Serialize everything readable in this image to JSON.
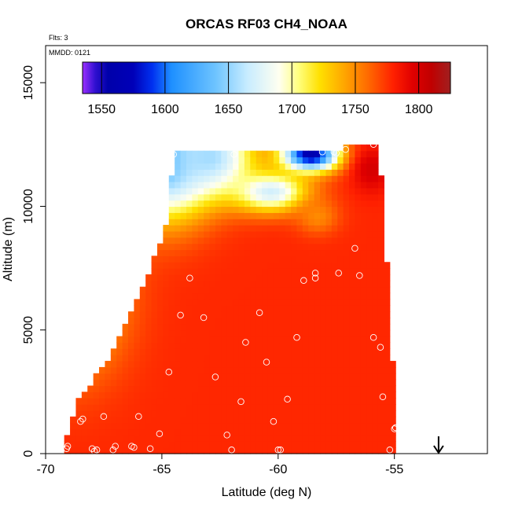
{
  "chart_data": {
    "type": "heatmap",
    "title": "ORCAS RF03 CH4_NOAA",
    "note_flights": "Flts: 3",
    "note_date": "MMDD: 0121",
    "xlabel": "Latitude (deg N)",
    "ylabel": "Altitude (m)",
    "xlim": [
      -70,
      -51
    ],
    "ylim": [
      0,
      16500
    ],
    "x_ticks": [
      -70,
      -65,
      -60,
      -55
    ],
    "x_tick_labels": [
      "-70",
      "-65",
      "-60",
      "-55"
    ],
    "y_ticks": [
      0,
      5000,
      10000,
      15000
    ],
    "y_tick_labels": [
      "0",
      "5000",
      "10000",
      "15000"
    ],
    "colorbar": {
      "range": [
        1535,
        1825
      ],
      "ticks": [
        1550,
        1600,
        1650,
        1700,
        1750,
        1800
      ],
      "tick_labels": [
        "1550",
        "1600",
        "1650",
        "1700",
        "1750",
        "1800"
      ],
      "gradient": [
        [
          1535,
          "#9b30ff"
        ],
        [
          1545,
          "#3010d0"
        ],
        [
          1555,
          "#0000aa"
        ],
        [
          1575,
          "#0000b8"
        ],
        [
          1590,
          "#0030f0"
        ],
        [
          1605,
          "#1e90ff"
        ],
        [
          1640,
          "#6ec4ff"
        ],
        [
          1665,
          "#c8ecff"
        ],
        [
          1690,
          "#fffff0"
        ],
        [
          1705,
          "#ffff80"
        ],
        [
          1722,
          "#ffe000"
        ],
        [
          1740,
          "#ffaa00"
        ],
        [
          1760,
          "#ff6a00"
        ],
        [
          1780,
          "#ff2000"
        ],
        [
          1795,
          "#e00000"
        ],
        [
          1810,
          "#c00000"
        ],
        [
          1825,
          "#a02020"
        ]
      ]
    },
    "field": {
      "lat_range": [
        -69.2,
        -54.8
      ],
      "alt_top": 12200,
      "boundary": [
        [
          -69.2,
          500
        ],
        [
          -68.6,
          2200
        ],
        [
          -67.6,
          3400
        ],
        [
          -66.5,
          5300
        ],
        [
          -65.5,
          7500
        ],
        [
          -64.7,
          9500
        ],
        [
          -64.6,
          10800
        ],
        [
          -64.5,
          12200
        ],
        [
          -57.2,
          12200
        ],
        [
          -57.2,
          12450
        ],
        [
          -55.7,
          12450
        ],
        [
          -55.4,
          9700
        ],
        [
          -55.3,
          7000
        ],
        [
          -55.1,
          4000
        ],
        [
          -54.9,
          1100
        ]
      ],
      "background_value": 1778,
      "features": [
        {
          "lat": -69.0,
          "alt": 6500,
          "value": 1705,
          "sx": 2.2,
          "sy": 3000
        },
        {
          "lat": -64.8,
          "alt": 12000,
          "value": 1620,
          "sx": 1.8,
          "sy": 2300
        },
        {
          "lat": -63.0,
          "alt": 12000,
          "value": 1655,
          "sx": 2.0,
          "sy": 1600
        },
        {
          "lat": -58.6,
          "alt": 12100,
          "value": 1560,
          "sx": 1.2,
          "sy": 650
        },
        {
          "lat": -60.3,
          "alt": 10600,
          "value": 1670,
          "sx": 1.6,
          "sy": 800
        },
        {
          "lat": -58.3,
          "alt": 9600,
          "value": 1750,
          "sx": 0.9,
          "sy": 700
        },
        {
          "lat": -56.0,
          "alt": 11500,
          "value": 1800,
          "sx": 0.8,
          "sy": 900
        }
      ]
    },
    "observations": [
      [
        -69.1,
        200
      ],
      [
        -69.05,
        300
      ],
      [
        -68.4,
        1400
      ],
      [
        -68.5,
        1300
      ],
      [
        -68.0,
        200
      ],
      [
        -67.8,
        150
      ],
      [
        -67.9,
        100
      ],
      [
        -67.5,
        1500
      ],
      [
        -67.0,
        300
      ],
      [
        -67.1,
        150
      ],
      [
        -66.3,
        300
      ],
      [
        -66.2,
        250
      ],
      [
        -66.0,
        1500
      ],
      [
        -65.1,
        800
      ],
      [
        -65.5,
        200
      ],
      [
        -64.7,
        3300
      ],
      [
        -64.2,
        5600
      ],
      [
        -63.2,
        5500
      ],
      [
        -62.7,
        3100
      ],
      [
        -62.2,
        750
      ],
      [
        -62.0,
        150
      ],
      [
        -61.6,
        2100
      ],
      [
        -61.4,
        4500
      ],
      [
        -60.8,
        5700
      ],
      [
        -60.5,
        3700
      ],
      [
        -60.2,
        1300
      ],
      [
        -60.0,
        150
      ],
      [
        -59.9,
        150
      ],
      [
        -59.6,
        2200
      ],
      [
        -59.2,
        4700
      ],
      [
        -58.9,
        7000
      ],
      [
        -58.4,
        7300
      ],
      [
        -58.4,
        7100
      ],
      [
        -57.4,
        7300
      ],
      [
        -56.7,
        8300
      ],
      [
        -56.5,
        7200
      ],
      [
        -55.9,
        4700
      ],
      [
        -55.6,
        4300
      ],
      [
        -55.5,
        2300
      ],
      [
        -55.2,
        150
      ],
      [
        -55.0,
        1000
      ],
      [
        -54.95,
        1050
      ],
      [
        -64.5,
        12100
      ],
      [
        -61.9,
        12100
      ],
      [
        -58.1,
        12200
      ],
      [
        -57.6,
        12200
      ],
      [
        -57.5,
        12150
      ],
      [
        -57.1,
        12300
      ],
      [
        -55.9,
        12500
      ],
      [
        -63.8,
        7100
      ]
    ],
    "arrow": {
      "lat": -53.1,
      "alt_top": 700,
      "alt_bottom": 0
    }
  }
}
